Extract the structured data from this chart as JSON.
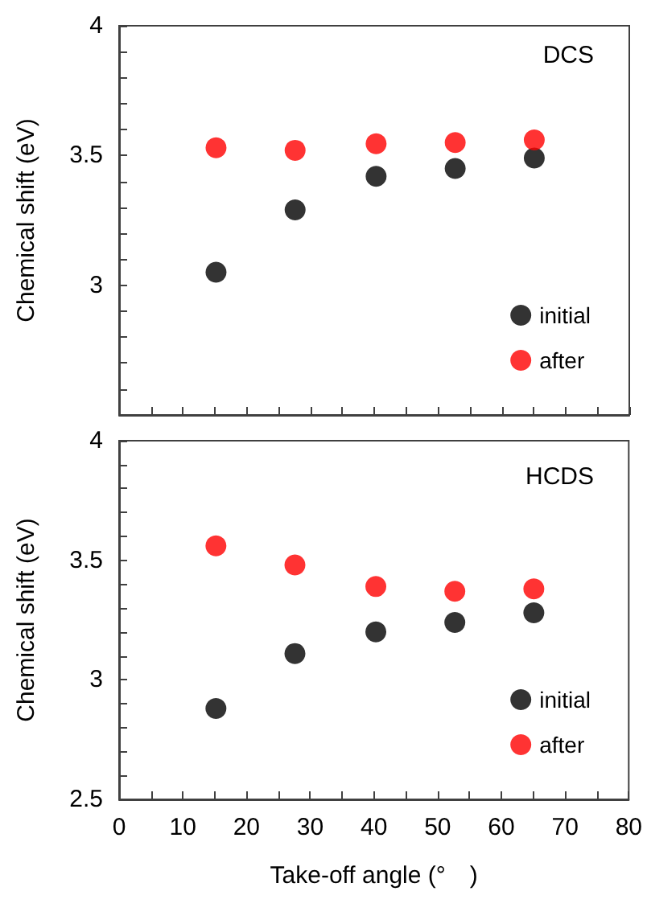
{
  "chart_data": [
    {
      "type": "scatter",
      "title": "DCS",
      "ylabel": "Chemical shift (eV)",
      "x": [
        15.2,
        27.6,
        40.3,
        52.7,
        65.1
      ],
      "series": [
        {
          "name": "initial",
          "color": "#000000",
          "values": [
            3.05,
            3.29,
            3.42,
            3.45,
            3.49
          ]
        },
        {
          "name": "after",
          "color": "#ff0000",
          "values": [
            3.53,
            3.52,
            3.545,
            3.55,
            3.56
          ]
        }
      ],
      "xlim": [
        0,
        80
      ],
      "xticks": [
        0,
        {
          "value": 5,
          "label": null
        },
        10,
        {
          "value": 15,
          "label": null
        },
        20,
        {
          "value": 25,
          "label": null
        },
        30,
        {
          "value": 35,
          "label": null
        },
        40,
        {
          "value": 45,
          "label": null
        },
        50,
        {
          "value": 55,
          "label": null
        },
        60,
        {
          "value": 65,
          "label": null
        },
        70,
        {
          "value": 75,
          "label": null
        },
        80
      ],
      "ylim": [
        2.5,
        4
      ],
      "yticks": [
        {
          "value": 2.5,
          "label": null
        },
        {
          "value": 2.6,
          "label": null
        },
        {
          "value": 2.7,
          "label": null
        },
        {
          "value": 2.8,
          "label": null
        },
        {
          "value": 2.9,
          "label": null
        },
        3,
        {
          "value": 3.1,
          "label": null
        },
        {
          "value": 3.2,
          "label": null
        },
        {
          "value": 3.3,
          "label": null
        },
        {
          "value": 3.4,
          "label": null
        },
        3.5,
        {
          "value": 3.6,
          "label": null
        },
        {
          "value": 3.7,
          "label": null
        },
        {
          "value": 3.8,
          "label": null
        },
        {
          "value": 3.9,
          "label": null
        },
        4
      ],
      "tick_labels": "y",
      "grid": false,
      "legend": "bottom right",
      "marker": "circle"
    },
    {
      "type": "scatter",
      "title": "HCDS",
      "xlabel": "Take-off angle (°　)",
      "ylabel": "Chemical shift (eV)",
      "x": [
        15.2,
        27.6,
        40.3,
        52.7,
        65.1
      ],
      "series": [
        {
          "name": "initial",
          "color": "#000000",
          "values": [
            2.88,
            3.11,
            3.2,
            3.24,
            3.28
          ]
        },
        {
          "name": "after",
          "color": "#ff0000",
          "values": [
            3.56,
            3.48,
            3.39,
            3.37,
            3.38
          ]
        }
      ],
      "xlim": [
        0,
        80
      ],
      "xticks": [
        0,
        {
          "value": 5,
          "label": null
        },
        10,
        {
          "value": 15,
          "label": null
        },
        20,
        {
          "value": 25,
          "label": null
        },
        30,
        {
          "value": 35,
          "label": null
        },
        40,
        {
          "value": 45,
          "label": null
        },
        50,
        {
          "value": 55,
          "label": null
        },
        60,
        {
          "value": 65,
          "label": null
        },
        70,
        {
          "value": 75,
          "label": null
        },
        80
      ],
      "ylim": [
        2.5,
        4
      ],
      "yticks": [
        2.5,
        {
          "value": 2.6,
          "label": null
        },
        {
          "value": 2.7,
          "label": null
        },
        {
          "value": 2.8,
          "label": null
        },
        {
          "value": 2.9,
          "label": null
        },
        3,
        {
          "value": 3.1,
          "label": null
        },
        {
          "value": 3.2,
          "label": null
        },
        {
          "value": 3.3,
          "label": null
        },
        {
          "value": 3.4,
          "label": null
        },
        3.5,
        {
          "value": 3.6,
          "label": null
        },
        {
          "value": 3.7,
          "label": null
        },
        {
          "value": 3.8,
          "label": null
        },
        {
          "value": 3.9,
          "label": null
        },
        4
      ],
      "grid": false,
      "legend": "bottom right",
      "marker": "circle"
    }
  ]
}
